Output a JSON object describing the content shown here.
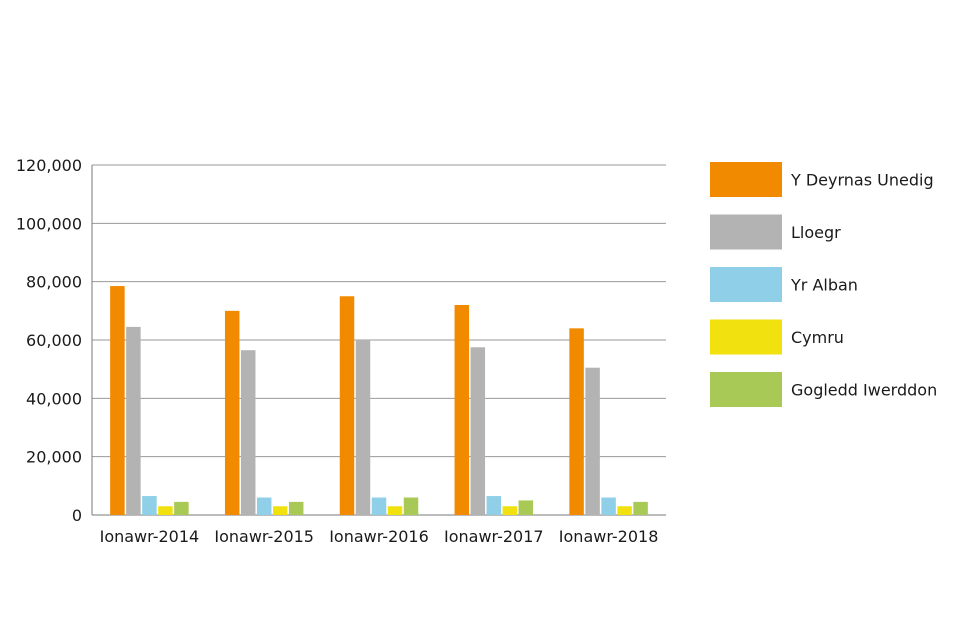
{
  "chart_data": {
    "type": "bar",
    "title": "",
    "xlabel": "",
    "ylabel": "",
    "categories": [
      "Ionawr-2014",
      "Ionawr-2015",
      "Ionawr-2016",
      "Ionawr-2017",
      "Ionawr-2018"
    ],
    "ylim": [
      0,
      120000
    ],
    "yticks": [
      0,
      20000,
      40000,
      60000,
      80000,
      100000,
      120000
    ],
    "ytick_labels": [
      "0",
      "20,000",
      "40,000",
      "60,000",
      "80,000",
      "100,000",
      "120,000"
    ],
    "grid": true,
    "legend_position": "right",
    "series": [
      {
        "name": "Y Deyrnas Unedig",
        "color": "#f28a00",
        "values": [
          78500,
          70000,
          75000,
          72000,
          64000
        ]
      },
      {
        "name": "Lloegr",
        "color": "#b3b3b3",
        "values": [
          64500,
          56500,
          60000,
          57500,
          50500
        ]
      },
      {
        "name": "Yr Alban",
        "color": "#8fd0e8",
        "values": [
          6500,
          6000,
          6000,
          6500,
          6000
        ]
      },
      {
        "name": "Cymru",
        "color": "#f0e10f",
        "values": [
          3000,
          3000,
          3000,
          3000,
          3000
        ]
      },
      {
        "name": "Gogledd Iwerddon",
        "color": "#a9c956",
        "values": [
          4500,
          4500,
          6000,
          5000,
          4500
        ]
      }
    ]
  }
}
